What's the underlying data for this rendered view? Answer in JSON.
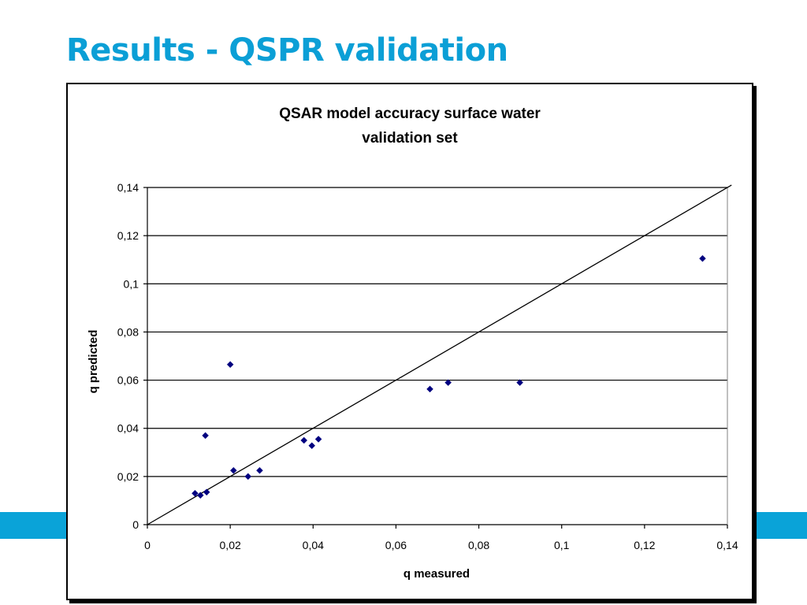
{
  "slide": {
    "title": "Results - QSPR validation",
    "accent_color": "#0aa3d8",
    "title_color": "#0b9fd6"
  },
  "chart_data": {
    "type": "scatter",
    "title_lines": [
      "QSAR model accuracy surface water",
      "validation set"
    ],
    "xlabel": "q measured",
    "ylabel": "q predicted",
    "xlim": [
      0,
      0.14
    ],
    "ylim": [
      0,
      0.14
    ],
    "x_ticks": [
      {
        "value": 0,
        "label": "0"
      },
      {
        "value": 0.02,
        "label": "0,02"
      },
      {
        "value": 0.04,
        "label": "0,04"
      },
      {
        "value": 0.06,
        "label": "0,06"
      },
      {
        "value": 0.08,
        "label": "0,08"
      },
      {
        "value": 0.1,
        "label": "0,1"
      },
      {
        "value": 0.12,
        "label": "0,12"
      },
      {
        "value": 0.14,
        "label": "0,14"
      }
    ],
    "y_ticks": [
      {
        "value": 0,
        "label": "0"
      },
      {
        "value": 0.02,
        "label": "0,02"
      },
      {
        "value": 0.04,
        "label": "0,04"
      },
      {
        "value": 0.06,
        "label": "0,06"
      },
      {
        "value": 0.08,
        "label": "0,08"
      },
      {
        "value": 0.1,
        "label": "0,1"
      },
      {
        "value": 0.12,
        "label": "0,12"
      },
      {
        "value": 0.14,
        "label": "0,14"
      }
    ],
    "horizontal_gridlines": true,
    "legend": "none",
    "marker_color": "#000080",
    "points": [
      {
        "x": 0.0115,
        "y": 0.013
      },
      {
        "x": 0.0128,
        "y": 0.0122
      },
      {
        "x": 0.0143,
        "y": 0.0135
      },
      {
        "x": 0.014,
        "y": 0.037
      },
      {
        "x": 0.02,
        "y": 0.0665
      },
      {
        "x": 0.0208,
        "y": 0.0225
      },
      {
        "x": 0.0243,
        "y": 0.02
      },
      {
        "x": 0.0271,
        "y": 0.0225
      },
      {
        "x": 0.0378,
        "y": 0.035
      },
      {
        "x": 0.0397,
        "y": 0.0328
      },
      {
        "x": 0.0413,
        "y": 0.0355
      },
      {
        "x": 0.0682,
        "y": 0.0563
      },
      {
        "x": 0.0726,
        "y": 0.059
      },
      {
        "x": 0.0899,
        "y": 0.059
      },
      {
        "x": 0.134,
        "y": 0.1105
      }
    ],
    "reference_line": {
      "x": [
        0,
        0.141
      ],
      "y": [
        0,
        0.141
      ]
    }
  }
}
